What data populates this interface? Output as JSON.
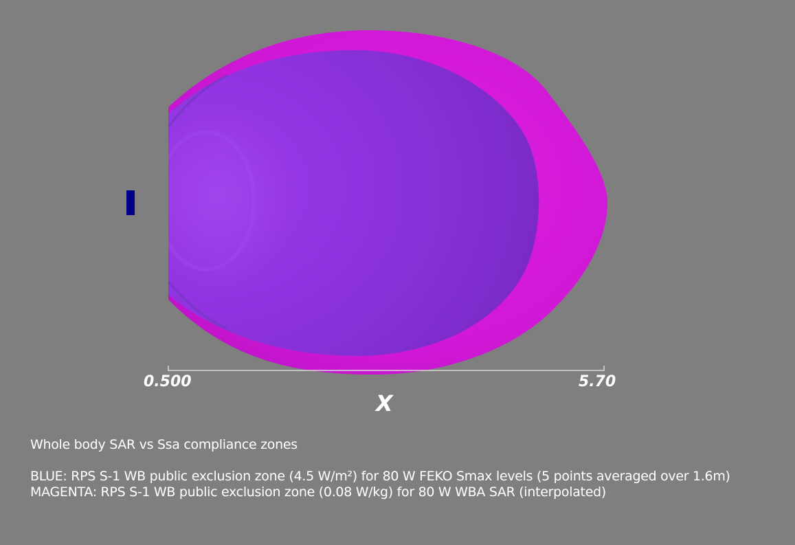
{
  "axis": {
    "name": "X",
    "min_label": "0.500",
    "max_label": "5.70"
  },
  "caption": {
    "title": "Whole body SAR vs Ssa compliance zones",
    "blue_line": "BLUE: RPS S-1 WB public exclusion zone (4.5 W/m²) for 80 W FEKO Smax levels (5 points averaged over 1.6m)",
    "magenta_line": "MAGENTA: RPS S-1 WB public exclusion zone (0.08 W/kg) for 80 W WBA SAR (interpolated)"
  },
  "colors": {
    "background": "#7f7f7f",
    "magenta_zone": "#d81ad8",
    "blue_zone": "#8a34d6",
    "antenna": "#00008b",
    "axis_line": "#d8d8d8"
  }
}
